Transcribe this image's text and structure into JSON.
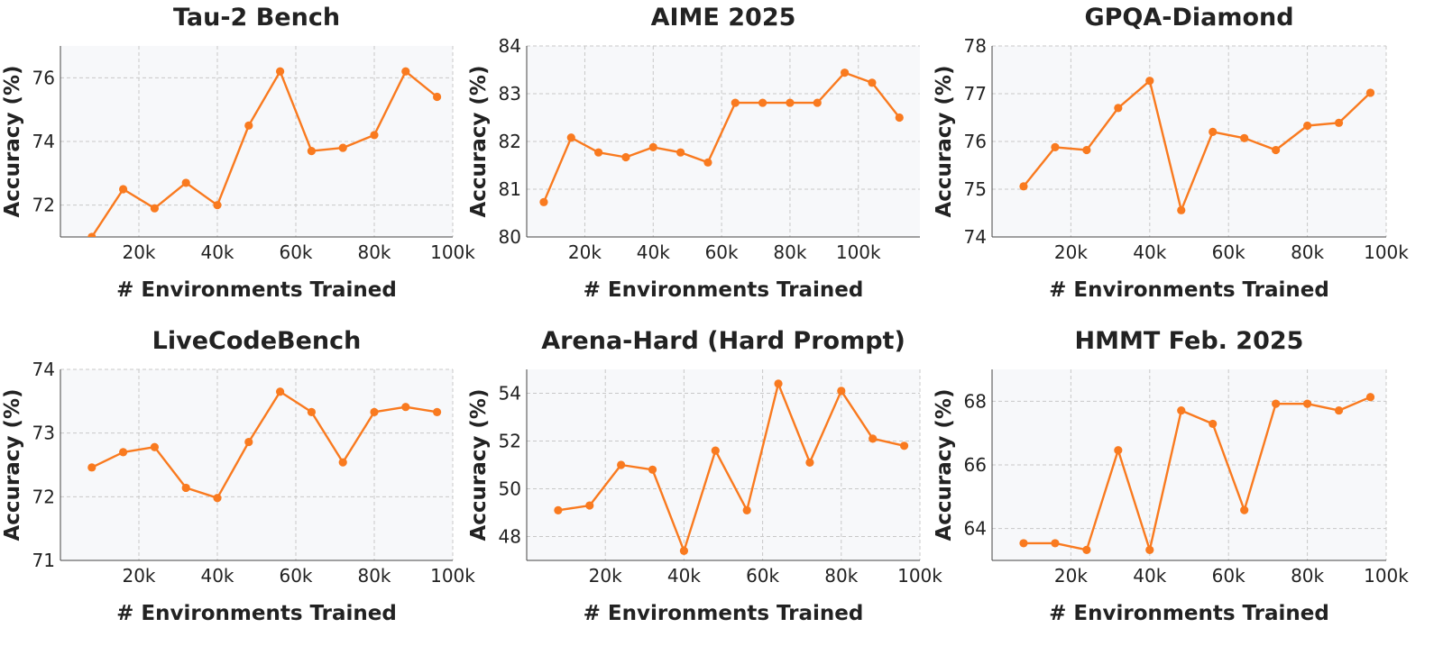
{
  "figure": {
    "xlabel": "# Environments Trained",
    "ylabel": "Accuracy (%)"
  },
  "colors": {
    "series": "#f97a1f",
    "plot_bg": "#f7f8fa",
    "grid": "#c8c8c8"
  },
  "chart_data": [
    {
      "type": "line",
      "title": "Tau-2 Bench",
      "xlabel": "# Environments Trained",
      "ylabel": "Accuracy (%)",
      "xlim": [
        0,
        100000
      ],
      "ylim": [
        71,
        77
      ],
      "xticks": [
        20000,
        40000,
        60000,
        80000,
        100000
      ],
      "xtick_labels": [
        "20k",
        "40k",
        "60k",
        "80k",
        "100k"
      ],
      "yticks": [
        72,
        74,
        76
      ],
      "ytick_labels": [
        "72",
        "74",
        "76"
      ],
      "grid": true,
      "series": [
        {
          "x": [
            8000,
            16000,
            24000,
            32000,
            40000,
            48000,
            56000,
            64000,
            72000,
            80000,
            88000,
            96000
          ],
          "y": [
            71.0,
            72.5,
            71.9,
            72.7,
            72.0,
            74.5,
            76.2,
            73.7,
            73.8,
            74.2,
            76.2,
            75.4
          ]
        }
      ]
    },
    {
      "type": "line",
      "title": "AIME 2025",
      "xlabel": "# Environments Trained",
      "ylabel": "Accuracy (%)",
      "xlim": [
        3000,
        118000
      ],
      "ylim": [
        80,
        84
      ],
      "xticks": [
        20000,
        40000,
        60000,
        80000,
        100000
      ],
      "xtick_labels": [
        "20k",
        "40k",
        "60k",
        "80k",
        "100k"
      ],
      "yticks": [
        80,
        81,
        82,
        83,
        84
      ],
      "ytick_labels": [
        "80",
        "81",
        "82",
        "83",
        "84"
      ],
      "grid": true,
      "series": [
        {
          "x": [
            8000,
            16000,
            24000,
            32000,
            40000,
            48000,
            56000,
            64000,
            72000,
            80000,
            88000,
            96000,
            104000,
            112000
          ],
          "y": [
            80.73,
            82.08,
            81.77,
            81.67,
            81.88,
            81.77,
            81.56,
            82.81,
            82.81,
            82.81,
            82.81,
            83.44,
            83.23,
            82.5
          ]
        }
      ]
    },
    {
      "type": "line",
      "title": "GPQA-Diamond",
      "xlabel": "# Environments Trained",
      "ylabel": "Accuracy (%)",
      "xlim": [
        0,
        100000
      ],
      "ylim": [
        74,
        78
      ],
      "xticks": [
        20000,
        40000,
        60000,
        80000,
        100000
      ],
      "xtick_labels": [
        "20k",
        "40k",
        "60k",
        "80k",
        "100k"
      ],
      "yticks": [
        74,
        75,
        76,
        77,
        78
      ],
      "ytick_labels": [
        "74",
        "75",
        "76",
        "77",
        "78"
      ],
      "grid": true,
      "series": [
        {
          "x": [
            8000,
            16000,
            24000,
            32000,
            40000,
            48000,
            56000,
            64000,
            72000,
            80000,
            88000,
            96000
          ],
          "y": [
            75.06,
            75.88,
            75.82,
            76.7,
            77.27,
            74.56,
            76.2,
            76.07,
            75.82,
            76.33,
            76.39,
            77.02
          ]
        }
      ]
    },
    {
      "type": "line",
      "title": "LiveCodeBench",
      "xlabel": "# Environments Trained",
      "ylabel": "Accuracy (%)",
      "xlim": [
        0,
        100000
      ],
      "ylim": [
        71,
        74
      ],
      "xticks": [
        20000,
        40000,
        60000,
        80000,
        100000
      ],
      "xtick_labels": [
        "20k",
        "40k",
        "60k",
        "80k",
        "100k"
      ],
      "yticks": [
        71,
        72,
        73,
        74
      ],
      "ytick_labels": [
        "71",
        "72",
        "73",
        "74"
      ],
      "grid": true,
      "series": [
        {
          "x": [
            8000,
            16000,
            24000,
            32000,
            40000,
            48000,
            56000,
            64000,
            72000,
            80000,
            88000,
            96000
          ],
          "y": [
            72.46,
            72.7,
            72.78,
            72.14,
            71.98,
            72.86,
            73.65,
            73.33,
            72.54,
            73.33,
            73.41,
            73.33
          ]
        }
      ]
    },
    {
      "type": "line",
      "title": "Arena-Hard (Hard Prompt)",
      "xlabel": "# Environments Trained",
      "ylabel": "Accuracy (%)",
      "xlim": [
        0,
        100000
      ],
      "ylim": [
        47,
        55
      ],
      "xticks": [
        20000,
        40000,
        60000,
        80000,
        100000
      ],
      "xtick_labels": [
        "20k",
        "40k",
        "60k",
        "80k",
        "100k"
      ],
      "yticks": [
        48,
        50,
        52,
        54
      ],
      "ytick_labels": [
        "48",
        "50",
        "52",
        "54"
      ],
      "grid": true,
      "series": [
        {
          "x": [
            8000,
            16000,
            24000,
            32000,
            40000,
            48000,
            56000,
            64000,
            72000,
            80000,
            88000,
            96000
          ],
          "y": [
            49.1,
            49.3,
            51.0,
            50.8,
            47.4,
            51.6,
            49.1,
            54.4,
            51.1,
            54.1,
            52.1,
            51.8
          ]
        }
      ]
    },
    {
      "type": "line",
      "title": "HMMT Feb. 2025",
      "xlabel": "# Environments Trained",
      "ylabel": "Accuracy (%)",
      "xlim": [
        0,
        100000
      ],
      "ylim": [
        63,
        69
      ],
      "xticks": [
        20000,
        40000,
        60000,
        80000,
        100000
      ],
      "xtick_labels": [
        "20k",
        "40k",
        "60k",
        "80k",
        "100k"
      ],
      "yticks": [
        64,
        66,
        68
      ],
      "ytick_labels": [
        "64",
        "66",
        "68"
      ],
      "grid": true,
      "series": [
        {
          "x": [
            8000,
            16000,
            24000,
            32000,
            40000,
            48000,
            56000,
            64000,
            72000,
            80000,
            88000,
            96000
          ],
          "y": [
            63.54,
            63.54,
            63.33,
            66.46,
            63.33,
            67.71,
            67.29,
            64.58,
            67.92,
            67.92,
            67.71,
            68.13
          ]
        }
      ]
    }
  ]
}
